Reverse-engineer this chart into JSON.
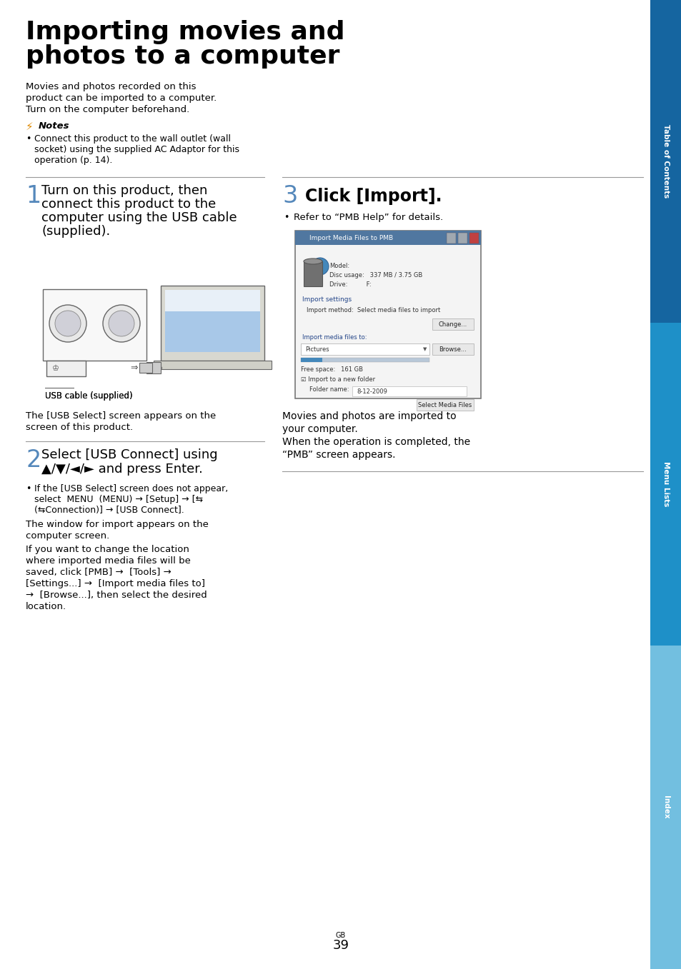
{
  "title_line1": "Importing movies and",
  "title_line2": "photos to a computer",
  "page_num": "39",
  "bg_color": "#ffffff",
  "sidebar_colors": [
    "#1565a0",
    "#1e90c8",
    "#72bfe0"
  ],
  "sidebar_labels": [
    "Table of Contents",
    "Menu Lists",
    "Index"
  ],
  "body_text_color": "#000000",
  "step_number_color": "#5588bb",
  "intro_lines": [
    "Movies and photos recorded on this",
    "product can be imported to a computer.",
    "Turn on the computer beforehand."
  ],
  "notes_lines": [
    "Connect this product to the wall outlet (wall",
    "socket) using the supplied AC Adaptor for this",
    "operation (p. 14)."
  ],
  "step1_lines": [
    "Turn on this product, then",
    "connect this product to the",
    "computer using the USB cable",
    "(supplied)."
  ],
  "step1_sub": [
    "The [USB Select] screen appears on the",
    "screen of this product."
  ],
  "step2_lines": [
    "Select [USB Connect] using",
    "▲/▼/◄/► and press Enter."
  ],
  "step2_bullet1_lines": [
    "If the [USB Select] screen does not appear,",
    "select  MENU  (MENU) → [Setup] → [⇆",
    "(⇆Connection)] → [USB Connect]."
  ],
  "step2_bullet2_lines": [
    "The window for import appears on the",
    "computer screen."
  ],
  "step2_bullet3_lines": [
    "If you want to change the location",
    "where imported media files will be",
    "saved, click [PMB] →  [Tools] →",
    "[Settings...] →  [Import media files to]",
    "→  [Browse...], then select the desired",
    "location."
  ],
  "step3_header": "Click [Import].",
  "step3_bullet": "Refer to “PMB Help” for details.",
  "step3_post": [
    "Movies and photos are imported to",
    "your computer.",
    "When the operation is completed, the",
    "“PMB” screen appears."
  ],
  "dialog_title": "Import Media Files to PMB",
  "dialog_device_lines": [
    "Model:",
    "Disc usage:   337 MB / 3.75 GB",
    "Drive:          F:"
  ],
  "dialog_import_method": "Import method:  Select media files to import",
  "dialog_dest_label": "Import media files to:",
  "dialog_dest_value": "Pictures",
  "dialog_freespace": "Free space:   161 GB",
  "dialog_folder_check": "☑ Import to a new folder",
  "dialog_folder_name": "8-12-2009",
  "dialog_btn_change": "Change...",
  "dialog_btn_browse": "Browse...",
  "dialog_btn_select": "Select Media Files"
}
